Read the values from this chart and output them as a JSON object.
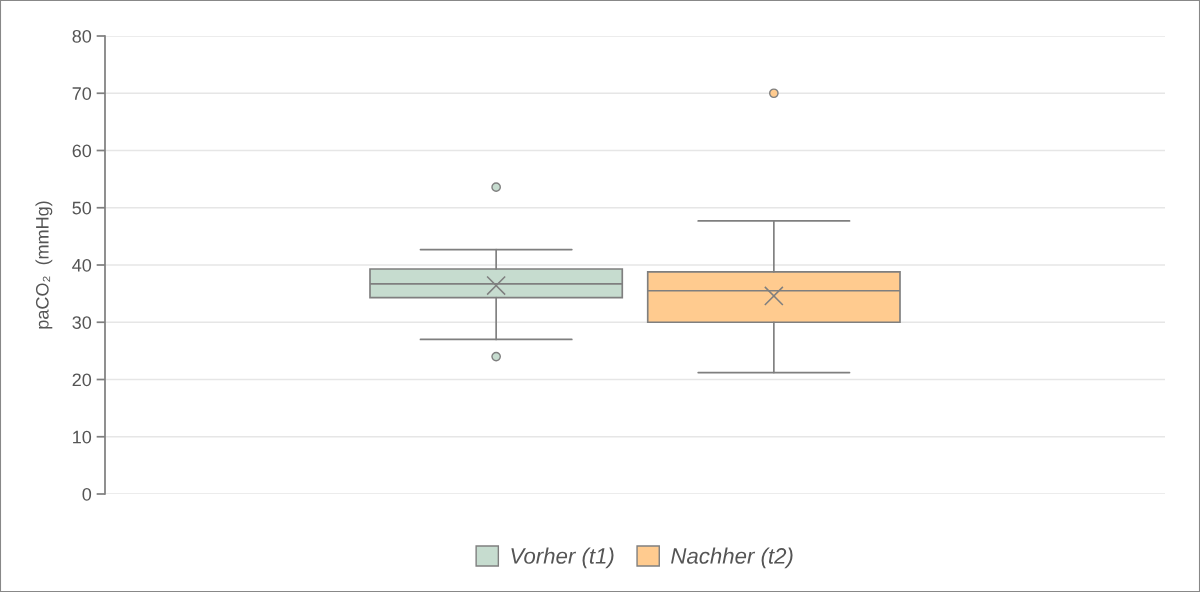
{
  "chart_data": {
    "type": "box",
    "ylabel": "paCO₂  (mmHg)",
    "categories": [
      null
    ],
    "series": [
      {
        "name": "Vorher (t1)",
        "color": "#c6dccf",
        "boxes": [
          {
            "low": 27.0,
            "q1": 34.3,
            "median": 36.7,
            "q3": 39.3,
            "high": 42.7,
            "mean": 36.4,
            "outliers": [
              53.6,
              24.0
            ]
          }
        ]
      },
      {
        "name": "Nachher (t2)",
        "color": "#ffcb8f",
        "boxes": [
          {
            "low": 21.2,
            "q1": 30.0,
            "median": 35.5,
            "q3": 38.8,
            "high": 47.7,
            "mean": 34.6,
            "outliers": [
              70.0
            ]
          }
        ]
      }
    ],
    "ylim": [
      0,
      80
    ],
    "yticks": [
      0,
      10,
      20,
      30,
      40,
      50,
      60,
      70,
      80
    ],
    "grid": "y",
    "legend": "bottom",
    "marker": "cross"
  }
}
